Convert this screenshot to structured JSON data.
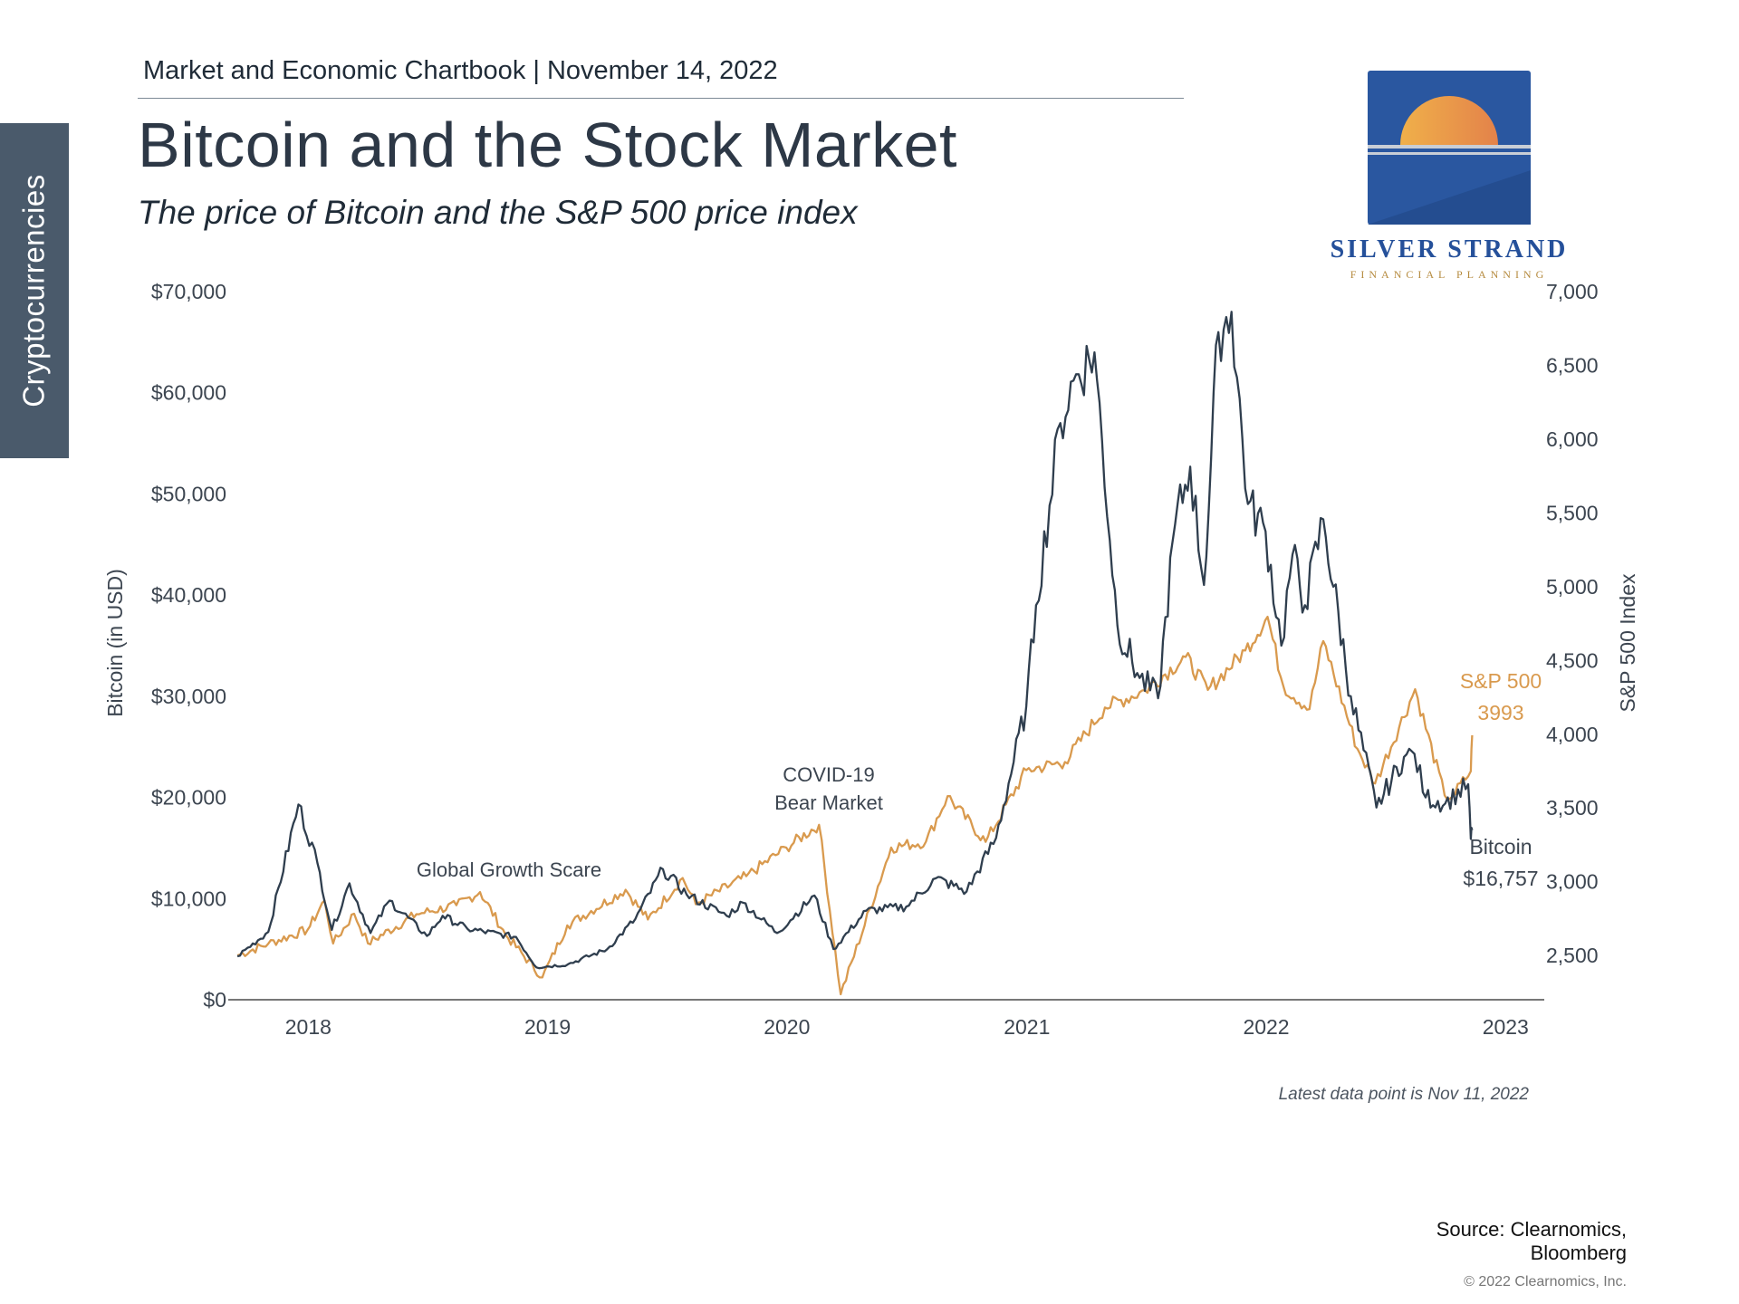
{
  "side_tab": "Cryptocurrencies",
  "header": "Market and Economic Chartbook | November 14, 2022",
  "title": "Bitcoin and the Stock Market",
  "subtitle": "The price of Bitcoin and the S&P 500 price index",
  "logo": {
    "name": "SILVER STRAND",
    "tagline": "FINANCIAL PLANNING",
    "colors": {
      "blue": "#2a57a0",
      "sun_left": "#f0b04a",
      "sun_right": "#e3824a"
    }
  },
  "latest_note": "Latest data point is Nov 11, 2022",
  "source": "Source: Clearnomics, Bloomberg",
  "copyright": "© 2022 Clearnomics, Inc.",
  "chart_data": {
    "type": "line",
    "y_left_label": "Bitcoin (in USD)",
    "y_right_label": "S&P 500 Index",
    "y_left_ticks": [
      "$0",
      "$10,000",
      "$20,000",
      "$30,000",
      "$40,000",
      "$50,000",
      "$60,000",
      "$70,000"
    ],
    "y_right_ticks": [
      "2,500",
      "3,000",
      "3,500",
      "4,000",
      "4,500",
      "5,000",
      "5,500",
      "6,000",
      "6,500",
      "7,000"
    ],
    "x_ticks": [
      "2018",
      "2019",
      "2020",
      "2021",
      "2022",
      "2023"
    ],
    "y_left_range": [
      0,
      70000
    ],
    "y_right_range": [
      2200,
      7000
    ],
    "x_range": [
      "2017-09-01",
      "2023-03-01"
    ],
    "annotations": [
      {
        "text": "Global Growth Scare",
        "x": "2018-10-01"
      },
      {
        "text": "COVID-19",
        "x": "2020-03-15"
      },
      {
        "text": "Bear Market",
        "x": "2020-03-15"
      }
    ],
    "series": [
      {
        "name": "Bitcoin",
        "axis": "left",
        "color": "#2f3e4e",
        "end_label": "Bitcoin",
        "end_value_label": "$16,757",
        "points": [
          [
            "2017-09-15",
            4300
          ],
          [
            "2017-11-01",
            6700
          ],
          [
            "2017-12-17",
            19300
          ],
          [
            "2018-01-15",
            13500
          ],
          [
            "2018-02-06",
            6900
          ],
          [
            "2018-03-05",
            11500
          ],
          [
            "2018-04-06",
            6600
          ],
          [
            "2018-05-05",
            9800
          ],
          [
            "2018-07-01",
            6300
          ],
          [
            "2018-07-25",
            8300
          ],
          [
            "2018-09-01",
            7000
          ],
          [
            "2018-11-14",
            6200
          ],
          [
            "2018-12-15",
            3200
          ],
          [
            "2019-02-01",
            3500
          ],
          [
            "2019-04-02",
            5000
          ],
          [
            "2019-05-15",
            8000
          ],
          [
            "2019-06-26",
            12900
          ],
          [
            "2019-08-01",
            10400
          ],
          [
            "2019-10-01",
            8300
          ],
          [
            "2019-10-26",
            9600
          ],
          [
            "2019-12-17",
            6600
          ],
          [
            "2020-02-12",
            10300
          ],
          [
            "2020-03-12",
            5000
          ],
          [
            "2020-05-01",
            8800
          ],
          [
            "2020-07-01",
            9200
          ],
          [
            "2020-08-15",
            12000
          ],
          [
            "2020-10-01",
            10700
          ],
          [
            "2020-11-15",
            16000
          ],
          [
            "2020-12-31",
            29000
          ],
          [
            "2021-01-15",
            39000
          ],
          [
            "2021-02-21",
            57000
          ],
          [
            "2021-03-13",
            61200
          ],
          [
            "2021-04-14",
            64000
          ],
          [
            "2021-05-19",
            37000
          ],
          [
            "2021-06-22",
            31800
          ],
          [
            "2021-07-20",
            29800
          ],
          [
            "2021-08-15",
            47000
          ],
          [
            "2021-09-07",
            52700
          ],
          [
            "2021-09-28",
            41000
          ],
          [
            "2021-10-20",
            66000
          ],
          [
            "2021-11-09",
            68000
          ],
          [
            "2021-12-04",
            49000
          ],
          [
            "2021-12-31",
            46300
          ],
          [
            "2022-01-24",
            35000
          ],
          [
            "2022-02-10",
            44000
          ],
          [
            "2022-03-01",
            39000
          ],
          [
            "2022-03-29",
            47500
          ],
          [
            "2022-05-10",
            30000
          ],
          [
            "2022-06-18",
            19000
          ],
          [
            "2022-07-30",
            24000
          ],
          [
            "2022-08-15",
            24300
          ],
          [
            "2022-09-01",
            20000
          ],
          [
            "2022-10-01",
            19400
          ],
          [
            "2022-11-05",
            21300
          ],
          [
            "2022-11-09",
            15900
          ],
          [
            "2022-11-11",
            16757
          ]
        ]
      },
      {
        "name": "S&P 500",
        "axis": "right",
        "color": "#d99a4e",
        "end_label": "S&P 500",
        "end_value_label": "3993",
        "points": [
          [
            "2017-09-15",
            2500
          ],
          [
            "2017-11-01",
            2580
          ],
          [
            "2017-12-31",
            2674
          ],
          [
            "2018-01-26",
            2873
          ],
          [
            "2018-02-08",
            2581
          ],
          [
            "2018-03-12",
            2783
          ],
          [
            "2018-04-02",
            2582
          ],
          [
            "2018-06-15",
            2780
          ],
          [
            "2018-08-15",
            2840
          ],
          [
            "2018-09-20",
            2930
          ],
          [
            "2018-10-29",
            2641
          ],
          [
            "2018-12-24",
            2351
          ],
          [
            "2019-01-31",
            2704
          ],
          [
            "2019-04-30",
            2945
          ],
          [
            "2019-06-03",
            2744
          ],
          [
            "2019-07-26",
            3025
          ],
          [
            "2019-08-15",
            2847
          ],
          [
            "2019-10-31",
            3037
          ],
          [
            "2019-12-31",
            3231
          ],
          [
            "2020-02-19",
            3386
          ],
          [
            "2020-03-23",
            2237
          ],
          [
            "2020-06-08",
            3232
          ],
          [
            "2020-07-31",
            3271
          ],
          [
            "2020-09-02",
            3580
          ],
          [
            "2020-10-30",
            3270
          ],
          [
            "2020-12-31",
            3756
          ],
          [
            "2021-02-28",
            3811
          ],
          [
            "2021-04-30",
            4181
          ],
          [
            "2021-06-30",
            4297
          ],
          [
            "2021-08-31",
            4523
          ],
          [
            "2021-10-04",
            4300
          ],
          [
            "2021-11-30",
            4567
          ],
          [
            "2022-01-03",
            4796
          ],
          [
            "2022-01-27",
            4326
          ],
          [
            "2022-03-08",
            4170
          ],
          [
            "2022-03-29",
            4631
          ],
          [
            "2022-05-20",
            3901
          ],
          [
            "2022-06-16",
            3666
          ],
          [
            "2022-08-16",
            4305
          ],
          [
            "2022-09-30",
            3585
          ],
          [
            "2022-10-12",
            3577
          ],
          [
            "2022-11-09",
            3749
          ],
          [
            "2022-11-11",
            3993
          ]
        ]
      }
    ]
  }
}
